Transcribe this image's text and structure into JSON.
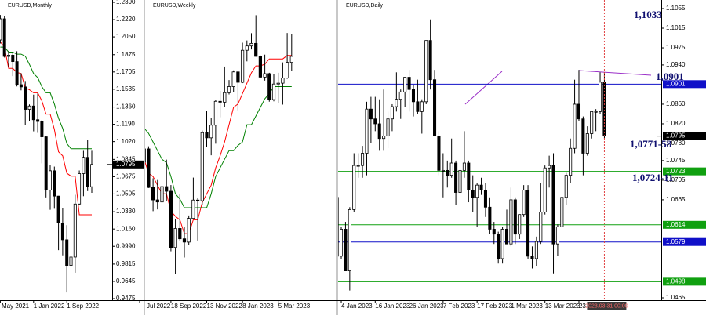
{
  "chart_data": [
    {
      "type": "candlestick",
      "title": "EURUSD,Monthly",
      "categories": [
        "May 2021",
        null,
        null,
        null,
        null,
        null,
        null,
        null,
        "1 Jan 2022",
        null,
        null,
        null,
        null,
        null,
        null,
        null,
        "1 Sep 2022",
        null,
        null,
        null,
        null,
        null,
        null
      ],
      "ohlc": [
        [
          1.202,
          1.2266,
          1.1985,
          1.2228
        ],
        [
          1.2228,
          1.2254,
          1.1847,
          1.1858
        ],
        [
          1.1858,
          1.1909,
          1.1752,
          1.187
        ],
        [
          1.187,
          1.1901,
          1.1664,
          1.1807
        ],
        [
          1.1807,
          1.1909,
          1.1563,
          1.158
        ],
        [
          1.158,
          1.1692,
          1.1524,
          1.1558
        ],
        [
          1.1558,
          1.1616,
          1.1186,
          1.1337
        ],
        [
          1.1337,
          1.1386,
          1.1222,
          1.137
        ],
        [
          1.137,
          1.1482,
          1.1121,
          1.1235
        ],
        [
          1.1235,
          1.1495,
          1.1106,
          1.1218
        ],
        [
          1.1218,
          1.1233,
          1.0806,
          1.1067
        ],
        [
          1.1067,
          1.1076,
          1.0471,
          1.0544
        ],
        [
          1.0544,
          1.0787,
          1.0349,
          1.0733
        ],
        [
          1.0733,
          1.0774,
          1.0359,
          1.0484
        ],
        [
          1.0484,
          1.0486,
          0.9952,
          1.022
        ],
        [
          1.022,
          1.0369,
          0.9901,
          1.0054
        ],
        [
          1.0054,
          1.0198,
          0.9536,
          0.9802
        ],
        [
          0.9802,
          1.0094,
          0.9632,
          0.9884
        ],
        [
          0.9884,
          1.0497,
          0.973,
          1.0406
        ],
        [
          1.0406,
          1.0736,
          1.0393,
          1.0705
        ],
        [
          1.0705,
          1.0929,
          1.0483,
          1.0865
        ],
        [
          1.0865,
          1.1033,
          1.0533,
          1.0576
        ],
        [
          1.0576,
          1.093,
          1.0516,
          1.0795
        ]
      ],
      "series": [
        {
          "color": "#ff0000",
          "values": [
            1.2,
            1.195,
            1.174,
            1.174,
            1.17,
            1.169,
            1.155,
            1.153,
            1.15,
            1.15,
            1.142,
            1.129,
            1.129,
            1.114,
            1.092,
            1.088,
            1.071,
            1.068,
            1.068,
            1.03,
            1.03,
            1.03,
            1.03
          ]
        },
        {
          "color": "#008000",
          "values": [
            1.195,
            1.195,
            1.19,
            1.19,
            1.188,
            1.188,
            1.186,
            1.178,
            1.169,
            1.165,
            1.156,
            1.15,
            1.15,
            1.139,
            1.125,
            1.115,
            1.1,
            1.095,
            1.095,
            1.095,
            1.095,
            1.095,
            1.095
          ]
        }
      ],
      "ylim": [
        0.9475,
        1.239
      ],
      "yticks": [
        {
          "value": 1.239,
          "label": "1.2390"
        },
        {
          "value": 1.222,
          "label": "1.2220"
        },
        {
          "value": 1.205,
          "label": "1.2050"
        },
        1.1875,
        1.1705,
        1.1535,
        {
          "value": 1.136,
          "label": "1.1360"
        },
        {
          "value": 1.119,
          "label": "1.1190"
        },
        {
          "value": 1.102,
          "label": "1.1020"
        },
        1.0845,
        1.0675,
        1.0505,
        {
          "value": 1.033,
          "label": "1.0330"
        },
        {
          "value": 1.016,
          "label": "1.0160"
        },
        {
          "value": 0.999,
          "label": "0.9990"
        },
        0.9815,
        0.9645,
        0.9475
      ],
      "last_price": 1.0795
    },
    {
      "type": "candlestick",
      "title": "EURUSD,Weekly",
      "categories": [
        "Jul 2022",
        null,
        null,
        null,
        null,
        null,
        null,
        "18 Sep 2022",
        null,
        null,
        null,
        null,
        null,
        null,
        null,
        "13 Nov 2022",
        null,
        null,
        null,
        null,
        null,
        null,
        null,
        "8 Jan 2023",
        null,
        null,
        null,
        null,
        null,
        null,
        null,
        "5 Mar 2023",
        null,
        null,
        null
      ],
      "ohlc": [
        [
          1.022,
          1.0293,
          1.0123,
          1.0183
        ],
        [
          1.0183,
          1.0368,
          1.018,
          1.026
        ],
        [
          1.026,
          1.0275,
          1.0034,
          1.0037
        ],
        [
          1.0037,
          1.009,
          0.99,
          0.9965
        ],
        [
          0.9965,
          1.008,
          0.991,
          0.9953
        ],
        [
          0.9953,
          1.0113,
          0.9877,
          1.0042
        ],
        [
          1.0042,
          1.0198,
          0.9956,
          1.0015
        ],
        [
          1.0015,
          1.0051,
          0.9668,
          0.969
        ],
        [
          0.969,
          0.9852,
          0.9536,
          0.98
        ],
        [
          0.98,
          0.9999,
          0.973,
          0.974
        ],
        [
          0.974,
          0.9808,
          0.9632,
          0.9721
        ],
        [
          0.9721,
          0.9875,
          0.9705,
          0.9858
        ],
        [
          0.9858,
          1.0094,
          0.9854,
          0.9964
        ],
        [
          0.9964,
          0.9977,
          0.973,
          0.996
        ],
        [
          0.996,
          1.0366,
          0.9937,
          1.0354
        ],
        [
          1.0354,
          1.0481,
          1.0271,
          1.0324
        ],
        [
          1.0324,
          1.044,
          1.0223,
          1.0397
        ],
        [
          1.0397,
          1.0545,
          1.029,
          1.0535
        ],
        [
          1.0535,
          1.0595,
          1.0443,
          1.053
        ],
        [
          1.053,
          1.0736,
          1.05,
          1.0585
        ],
        [
          1.0585,
          1.0658,
          1.0575,
          1.062
        ],
        [
          1.062,
          1.0714,
          1.059,
          1.0705
        ],
        [
          1.0705,
          1.0713,
          1.0483,
          1.0645
        ],
        [
          1.0645,
          1.0874,
          1.064,
          1.083
        ],
        [
          1.083,
          1.0887,
          1.0766,
          1.0855
        ],
        [
          1.0855,
          1.0929,
          1.0835,
          1.087
        ],
        [
          1.087,
          1.1033,
          1.0793,
          1.0795
        ],
        [
          1.0795,
          1.08,
          1.0669,
          1.0675
        ],
        [
          1.0675,
          1.0805,
          1.0655,
          1.0695
        ],
        [
          1.0695,
          1.07,
          1.0533,
          1.0545
        ],
        [
          1.0545,
          1.0693,
          1.0535,
          1.0635
        ],
        [
          1.0635,
          1.07,
          1.0525,
          1.064
        ],
        [
          1.064,
          1.076,
          1.0516,
          1.067
        ],
        [
          1.067,
          1.093,
          1.0665,
          1.076
        ],
        [
          1.076,
          1.0925,
          1.0713,
          1.0795
        ]
      ],
      "series": [
        {
          "color": "#ff0000",
          "values": [
            1.02,
            1.02,
            1.012,
            1.01,
            1.005,
            1.0,
            1.0,
            0.99,
            0.987,
            0.985,
            0.977,
            0.977,
            0.985,
            0.985,
            0.995,
            1.0,
            1.005,
            1.015,
            1.022,
            1.03,
            1.04,
            1.05,
            1.052,
            1.058,
            1.064,
            1.07,
            1.074,
            1.074,
            1.075,
            1.078,
            1.078,
            1.078,
            1.078,
            1.08,
            1.08
          ]
        },
        {
          "color": "#008000",
          "values": [
            1.04,
            1.038,
            1.035,
            1.03,
            1.025,
            1.02,
            1.018,
            1.01,
            1.0,
            0.997,
            0.992,
            0.992,
            0.992,
            0.992,
            0.992,
            0.992,
            1.0,
            1.01,
            1.015,
            1.02,
            1.025,
            1.025,
            1.028,
            1.03,
            1.04,
            1.04,
            1.045,
            1.05,
            1.055,
            1.058,
            1.062,
            1.062,
            1.062,
            1.062,
            1.062
          ]
        }
      ],
      "ylim": [
        0.9385,
        1.1121
      ]
    },
    {
      "type": "candlestick",
      "title": "EURUSD,Daily",
      "categories": [
        null,
        null,
        "4 Jan 2023",
        null,
        null,
        null,
        null,
        null,
        null,
        null,
        "16 Jan 2023",
        null,
        null,
        null,
        null,
        null,
        null,
        null,
        "26 Jan 2023",
        null,
        null,
        null,
        null,
        null,
        null,
        null,
        "7 Feb 2023",
        null,
        null,
        null,
        null,
        null,
        null,
        null,
        "17 Feb 2023",
        null,
        null,
        null,
        null,
        null,
        null,
        null,
        "1 Mar 2023",
        null,
        null,
        null,
        null,
        null,
        null,
        null,
        "13 Mar 2023",
        null,
        null,
        null,
        null,
        null,
        null,
        null,
        "23",
        null,
        null,
        null,
        null,
        null,
        "2023.03.31 00:00"
      ],
      "ohlc": [
        [
          1.0705,
          1.071,
          1.065,
          1.067
        ],
        [
          1.067,
          1.0685,
          1.052,
          1.055
        ],
        [
          1.055,
          1.061,
          1.0545,
          1.0605
        ],
        [
          1.0605,
          1.062,
          1.052,
          1.052
        ],
        [
          1.052,
          1.065,
          1.048,
          1.0645
        ],
        [
          1.0645,
          1.076,
          1.064,
          1.0735
        ],
        [
          1.0735,
          1.076,
          1.071,
          1.0735
        ],
        [
          1.0735,
          1.0775,
          1.071,
          1.076
        ],
        [
          1.076,
          1.0865,
          1.0715,
          1.085
        ],
        [
          1.085,
          1.0875,
          1.078,
          1.083
        ],
        [
          1.083,
          1.0875,
          1.0805,
          1.082
        ],
        [
          1.082,
          1.087,
          1.0765,
          1.079
        ],
        [
          1.079,
          1.089,
          1.0765,
          1.0795
        ],
        [
          1.0795,
          1.0845,
          1.077,
          1.083
        ],
        [
          1.083,
          1.086,
          1.0805,
          1.0855
        ],
        [
          1.0855,
          1.0925,
          1.0845,
          1.087
        ],
        [
          1.087,
          1.089,
          1.083,
          1.0885
        ],
        [
          1.0885,
          1.0915,
          1.0855,
          1.0915
        ],
        [
          1.0915,
          1.093,
          1.0845,
          1.089
        ],
        [
          1.089,
          1.09,
          1.0835,
          1.0865
        ],
        [
          1.0865,
          1.091,
          1.084,
          1.0845
        ],
        [
          1.0845,
          1.087,
          1.08,
          1.0865
        ],
        [
          1.0865,
          1.099,
          1.086,
          1.099
        ],
        [
          1.099,
          1.1033,
          1.089,
          1.091
        ],
        [
          1.091,
          1.093,
          1.0795,
          1.0795
        ],
        [
          1.0795,
          1.0805,
          1.0715,
          1.0725
        ],
        [
          1.0725,
          1.076,
          1.067,
          1.0725
        ],
        [
          1.0725,
          1.0745,
          1.069,
          1.0715
        ],
        [
          1.0715,
          1.079,
          1.071,
          1.074
        ],
        [
          1.074,
          1.0745,
          1.0655,
          1.068
        ],
        [
          1.068,
          1.073,
          1.0675,
          1.0725
        ],
        [
          1.0725,
          1.0805,
          1.071,
          1.074
        ],
        [
          1.074,
          1.0745,
          1.066,
          1.0685
        ],
        [
          1.0685,
          1.0715,
          1.064,
          1.067
        ],
        [
          1.067,
          1.07,
          1.061,
          1.0695
        ],
        [
          1.0695,
          1.071,
          1.0675,
          1.0685
        ],
        [
          1.0685,
          1.07,
          1.063,
          1.065
        ],
        [
          1.065,
          1.067,
          1.0595,
          1.0605
        ],
        [
          1.0605,
          1.062,
          1.0575,
          1.0595
        ],
        [
          1.0595,
          1.06,
          1.0535,
          1.0545
        ],
        [
          1.0545,
          1.061,
          1.0535,
          1.0605
        ],
        [
          1.0605,
          1.0645,
          1.0575,
          1.0575
        ],
        [
          1.0575,
          1.069,
          1.057,
          1.0665
        ],
        [
          1.0665,
          1.067,
          1.0575,
          1.0595
        ],
        [
          1.0595,
          1.0635,
          1.0585,
          1.0635
        ],
        [
          1.0635,
          1.0695,
          1.063,
          1.0685
        ],
        [
          1.0685,
          1.0695,
          1.0545,
          1.055
        ],
        [
          1.055,
          1.057,
          1.0525,
          1.0545
        ],
        [
          1.0545,
          1.059,
          1.053,
          1.058
        ],
        [
          1.058,
          1.07,
          1.0575,
          1.064
        ],
        [
          1.064,
          1.0735,
          1.0635,
          1.073
        ],
        [
          1.073,
          1.0755,
          1.069,
          1.0735
        ],
        [
          1.0735,
          1.076,
          1.0515,
          1.0575
        ],
        [
          1.0575,
          1.0615,
          1.055,
          1.061
        ],
        [
          1.061,
          1.067,
          1.061,
          1.067
        ],
        [
          1.067,
          1.072,
          1.0655,
          1.0715
        ],
        [
          1.0715,
          1.079,
          1.07,
          1.077
        ],
        [
          1.077,
          1.091,
          1.076,
          1.086
        ],
        [
          1.086,
          1.093,
          1.0825,
          1.083
        ],
        [
          1.083,
          1.0835,
          1.0715,
          1.076
        ],
        [
          1.076,
          1.0815,
          1.0755,
          1.08
        ],
        [
          1.08,
          1.0845,
          1.079,
          1.0845
        ],
        [
          1.0845,
          1.085,
          1.0805,
          1.0845
        ],
        [
          1.0845,
          1.0925,
          1.084,
          1.0905
        ],
        [
          1.0905,
          1.0925,
          1.079,
          1.0795
        ]
      ],
      "ylim": [
        1.0465,
        1.1055
      ],
      "yticks": [
        1.1055,
        1.1015,
        1.0975,
        {
          "value": 1.094,
          "label": "1.0940"
        },
        {
          "value": 1.086,
          "label": "1.0860"
        },
        {
          "value": 1.082,
          "label": "1.0820"
        },
        {
          "value": 1.078,
          "label": "1.0780"
        },
        1.0745,
        1.0705,
        1.0665,
        1.0465
      ],
      "levels": [
        {
          "value": 1.0901,
          "color": "#1010c8"
        },
        {
          "value": 1.0723,
          "color": "#10a010"
        },
        {
          "value": 1.0614,
          "color": "#10a010"
        },
        {
          "value": 1.0579,
          "color": "#1010c8"
        },
        {
          "value": 1.0498,
          "color": "#10a010"
        }
      ],
      "last_price": 1.0795,
      "annotations": [
        "1,1033",
        "1,0901",
        "1,0771-58",
        "1,0724-11"
      ]
    }
  ]
}
